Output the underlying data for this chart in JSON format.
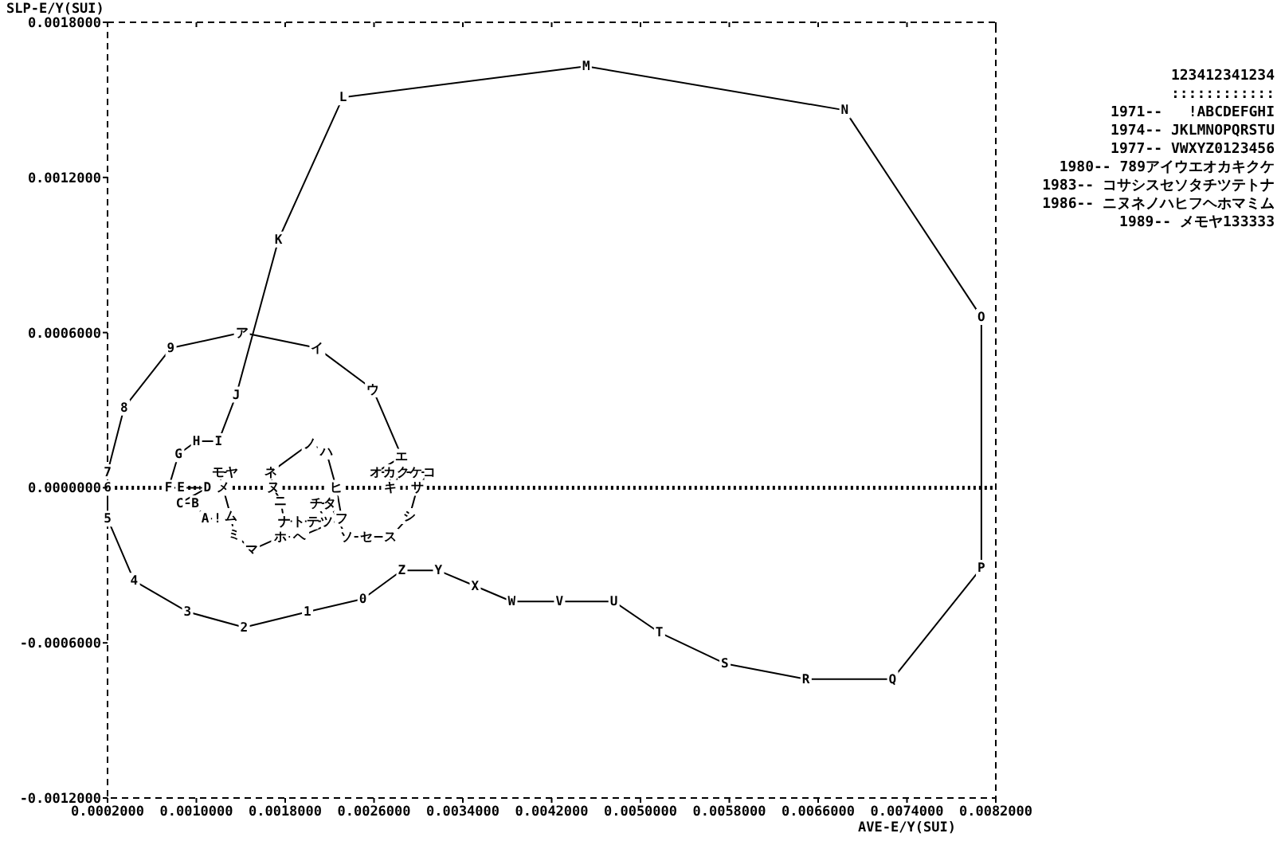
{
  "chart_data": {
    "type": "line",
    "xlabel": "AVE-E/Y(SUI)",
    "ylabel": "SLP-E/Y(SUI)",
    "xlim": [
      0.0002,
      0.0082
    ],
    "ylim": [
      -0.0012,
      0.0018
    ],
    "xticks": [
      {
        "value": 0.0002,
        "label": "0.0002000"
      },
      {
        "value": 0.001,
        "label": "0.0010000"
      },
      {
        "value": 0.0018,
        "label": "0.0018000"
      },
      {
        "value": 0.0026,
        "label": "0.0026000"
      },
      {
        "value": 0.0034,
        "label": "0.0034000"
      },
      {
        "value": 0.0042,
        "label": "0.0042000"
      },
      {
        "value": 0.005,
        "label": "0.0050000"
      },
      {
        "value": 0.0058,
        "label": "0.0058000"
      },
      {
        "value": 0.0066,
        "label": "0.0066000"
      },
      {
        "value": 0.0074,
        "label": "0.0074000"
      },
      {
        "value": 0.0082,
        "label": "0.0082000"
      }
    ],
    "yticks": [
      {
        "value": -0.0012,
        "label": "-0.0012000"
      },
      {
        "value": -0.0006,
        "label": "-0.0006000"
      },
      {
        "value": 0,
        "label": "0.0000000"
      },
      {
        "value": 0.0006,
        "label": "0.0006000"
      },
      {
        "value": 0.0012,
        "label": "0.0012000"
      },
      {
        "value": 0.0018,
        "label": "0.0018000"
      }
    ],
    "color": "#000000",
    "x": [
      0.00119,
      0.00108,
      0.00099,
      0.00085,
      0.0011,
      0.00086,
      0.00075,
      0.00084,
      0.001,
      0.0012,
      0.00136,
      0.00174,
      0.00232,
      0.00451,
      0.00684,
      0.00807,
      0.00807,
      0.00727,
      0.00649,
      0.00576,
      0.00517,
      0.00476,
      0.00427,
      0.00384,
      0.00351,
      0.00318,
      0.00285,
      0.0025,
      0.002,
      0.00143,
      0.00092,
      0.00044,
      0.0002,
      0.0002,
      0.0002,
      0.00035,
      0.00077,
      0.00141,
      0.00209,
      0.00259,
      0.00285,
      0.00262,
      0.00274,
      0.00275,
      0.00286,
      0.00298,
      0.0031,
      0.00299,
      0.00292,
      0.00275,
      0.00253,
      0.00235,
      0.0022,
      0.00208,
      0.00217,
      0.00205,
      0.00192,
      0.00179,
      0.00176,
      0.00169,
      0.00167,
      0.00202,
      0.00217,
      0.00226,
      0.00231,
      0.00193,
      0.00176,
      0.0015,
      0.00134,
      0.00131,
      0.00124,
      0.0012,
      0.00132
    ],
    "values": [
      -0.00012,
      -0.00012,
      -6e-05,
      -6e-05,
      0,
      0,
      0,
      0.00013,
      0.00018,
      0.00018,
      0.00036,
      0.00096,
      0.00151,
      0.00163,
      0.00146,
      0.00066,
      -0.00031,
      -0.00074,
      -0.00074,
      -0.00068,
      -0.00056,
      -0.00044,
      -0.00044,
      -0.00044,
      -0.00038,
      -0.00032,
      -0.00032,
      -0.00043,
      -0.00048,
      -0.00054,
      -0.00048,
      -0.00036,
      -0.00012,
      0,
      6e-05,
      0.00031,
      0.00054,
      0.0006,
      0.00054,
      0.00038,
      0.00012,
      6e-05,
      6e-05,
      0,
      6e-05,
      6e-05,
      6e-05,
      0,
      -0.00011,
      -0.00019,
      -0.00019,
      -0.00019,
      -6e-05,
      -6e-05,
      -0.00013,
      -0.00013,
      -0.00013,
      -0.00013,
      -5e-05,
      0,
      6e-05,
      0.00017,
      0.00014,
      0,
      -0.00012,
      -0.00019,
      -0.00019,
      -0.00024,
      -0.00018,
      -0.00011,
      0,
      6e-05,
      6e-05
    ],
    "ref_lines": [
      {
        "axis": "y",
        "value": 0,
        "line_style": "dotted"
      }
    ],
    "annotations": [
      "123412341234",
      "::::::::::::",
      "1971--   !ABCDEFGHI",
      "1974-- JKLMNOPQRSTU",
      "1977-- VWXYZ0123456",
      "1980-- 789アイウエオカキクケ",
      "1983-- コサシスセソタチツテトナ",
      "1986-- ニヌネノハヒフヘホマミム",
      "1989-- メモヤ133333",
      {
        "text": "!",
        "x": 0.00119,
        "y": -0.00012
      },
      {
        "text": "A",
        "x": 0.00108,
        "y": -0.00012
      },
      {
        "text": "B",
        "x": 0.00099,
        "y": -6e-05
      },
      {
        "text": "C",
        "x": 0.00085,
        "y": -6e-05
      },
      {
        "text": "D",
        "x": 0.0011,
        "y": 0
      },
      {
        "text": "E",
        "x": 0.00086,
        "y": 0
      },
      {
        "text": "F",
        "x": 0.00075,
        "y": 0
      },
      {
        "text": "G",
        "x": 0.00084,
        "y": 0.00013
      },
      {
        "text": "H",
        "x": 0.001,
        "y": 0.00018
      },
      {
        "text": "I",
        "x": 0.0012,
        "y": 0.00018
      },
      {
        "text": "J",
        "x": 0.00136,
        "y": 0.00036
      },
      {
        "text": "K",
        "x": 0.00174,
        "y": 0.00096
      },
      {
        "text": "L",
        "x": 0.00232,
        "y": 0.00151
      },
      {
        "text": "M",
        "x": 0.00451,
        "y": 0.00163
      },
      {
        "text": "N",
        "x": 0.00684,
        "y": 0.00146
      },
      {
        "text": "O",
        "x": 0.00807,
        "y": 0.00066
      },
      {
        "text": "P",
        "x": 0.00807,
        "y": -0.00031
      },
      {
        "text": "Q",
        "x": 0.00727,
        "y": -0.00074
      },
      {
        "text": "R",
        "x": 0.00649,
        "y": -0.00074
      },
      {
        "text": "S",
        "x": 0.00576,
        "y": -0.00068
      },
      {
        "text": "T",
        "x": 0.00517,
        "y": -0.00056
      },
      {
        "text": "U",
        "x": 0.00476,
        "y": -0.00044
      },
      {
        "text": "V",
        "x": 0.00427,
        "y": -0.00044
      },
      {
        "text": "W",
        "x": 0.00384,
        "y": -0.00044
      },
      {
        "text": "X",
        "x": 0.00351,
        "y": -0.00038
      },
      {
        "text": "Y",
        "x": 0.00318,
        "y": -0.00032
      },
      {
        "text": "Z",
        "x": 0.00285,
        "y": -0.00032
      },
      {
        "text": "0",
        "x": 0.0025,
        "y": -0.00043
      },
      {
        "text": "1",
        "x": 0.002,
        "y": -0.00048
      },
      {
        "text": "2",
        "x": 0.00143,
        "y": -0.00054
      },
      {
        "text": "3",
        "x": 0.00092,
        "y": -0.00048
      },
      {
        "text": "4",
        "x": 0.00044,
        "y": -0.00036
      },
      {
        "text": "5",
        "x": 0.0002,
        "y": -0.00012
      },
      {
        "text": "6",
        "x": 0.0002,
        "y": 0
      },
      {
        "text": "7",
        "x": 0.0002,
        "y": 6e-05
      },
      {
        "text": "8",
        "x": 0.00035,
        "y": 0.00031
      },
      {
        "text": "9",
        "x": 0.00077,
        "y": 0.00054
      },
      {
        "text": "ア",
        "x": 0.00141,
        "y": 0.0006
      },
      {
        "text": "イ",
        "x": 0.00209,
        "y": 0.00054
      },
      {
        "text": "ウ",
        "x": 0.00259,
        "y": 0.00038
      },
      {
        "text": "エ",
        "x": 0.00285,
        "y": 0.00012
      },
      {
        "text": "オ",
        "x": 0.00262,
        "y": 6e-05
      },
      {
        "text": "カ",
        "x": 0.00274,
        "y": 6e-05
      },
      {
        "text": "キ",
        "x": 0.00275,
        "y": 0
      },
      {
        "text": "ク",
        "x": 0.00286,
        "y": 6e-05
      },
      {
        "text": "ケ",
        "x": 0.00298,
        "y": 6e-05
      },
      {
        "text": "コ",
        "x": 0.0031,
        "y": 6e-05
      },
      {
        "text": "サ",
        "x": 0.00299,
        "y": 0
      },
      {
        "text": "シ",
        "x": 0.00292,
        "y": -0.00011
      },
      {
        "text": "ス",
        "x": 0.00275,
        "y": -0.00019
      },
      {
        "text": "セ",
        "x": 0.00253,
        "y": -0.00019
      },
      {
        "text": "ソ",
        "x": 0.00235,
        "y": -0.00019
      },
      {
        "text": "タ",
        "x": 0.0022,
        "y": -6e-05
      },
      {
        "text": "チ",
        "x": 0.00208,
        "y": -6e-05
      },
      {
        "text": "ツ",
        "x": 0.00217,
        "y": -0.00013
      },
      {
        "text": "テ",
        "x": 0.00205,
        "y": -0.00013
      },
      {
        "text": "ト",
        "x": 0.00192,
        "y": -0.00013
      },
      {
        "text": "ナ",
        "x": 0.00179,
        "y": -0.00013
      },
      {
        "text": "ニ",
        "x": 0.00176,
        "y": -5e-05
      },
      {
        "text": "ヌ",
        "x": 0.00169,
        "y": 0
      },
      {
        "text": "ネ",
        "x": 0.00167,
        "y": 6e-05
      },
      {
        "text": "ノ",
        "x": 0.00202,
        "y": 0.00017
      },
      {
        "text": "ハ",
        "x": 0.00217,
        "y": 0.00014
      },
      {
        "text": "ヒ",
        "x": 0.00226,
        "y": 0
      },
      {
        "text": "フ",
        "x": 0.00231,
        "y": -0.00012
      },
      {
        "text": "ヘ",
        "x": 0.00193,
        "y": -0.00019
      },
      {
        "text": "ホ",
        "x": 0.00176,
        "y": -0.00019
      },
      {
        "text": "マ",
        "x": 0.0015,
        "y": -0.00024
      },
      {
        "text": "ミ",
        "x": 0.00134,
        "y": -0.00018
      },
      {
        "text": "ム",
        "x": 0.00131,
        "y": -0.00011
      },
      {
        "text": "メ",
        "x": 0.00124,
        "y": 0
      },
      {
        "text": "モ",
        "x": 0.0012,
        "y": 6e-05
      },
      {
        "text": "ヤ",
        "x": 0.00132,
        "y": 6e-05
      }
    ]
  }
}
